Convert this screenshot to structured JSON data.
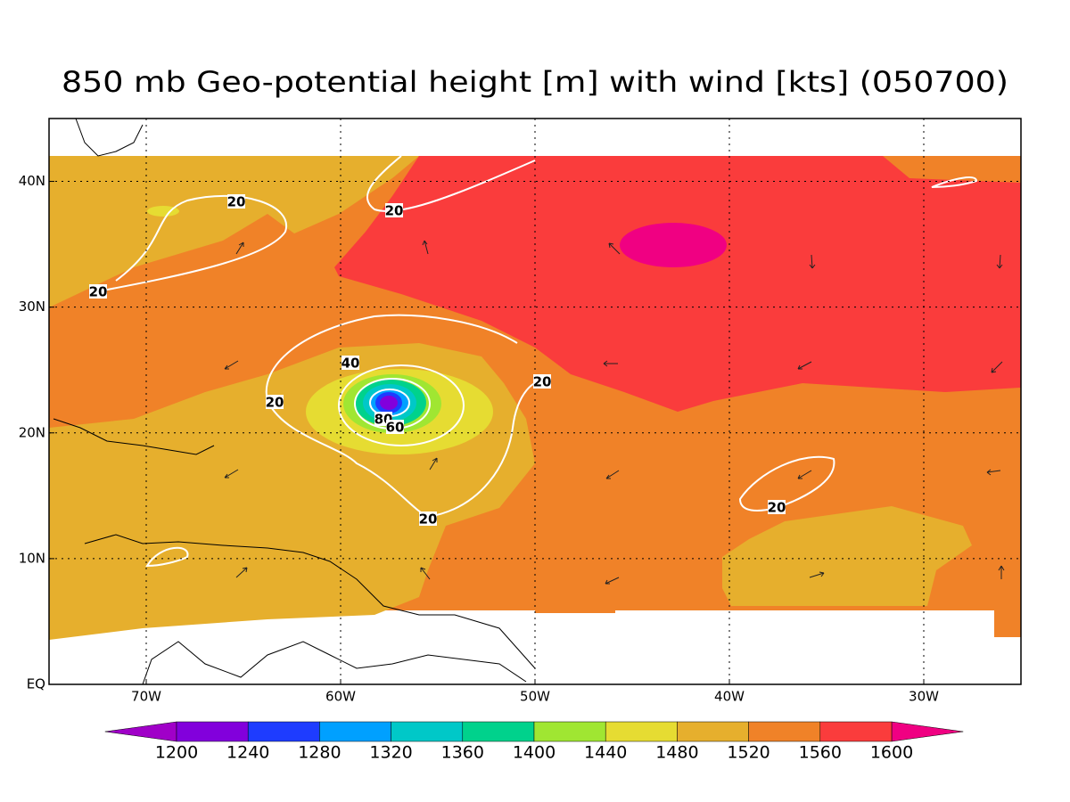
{
  "map": {
    "title": "850 mb Geo-potential height [m] with wind [kts] (050700)",
    "xlim": [
      -75,
      -25
    ],
    "ylim": [
      0,
      45
    ],
    "lon_ticks": [
      {
        "value": -70,
        "label": "70W"
      },
      {
        "value": -60,
        "label": "60W"
      },
      {
        "value": -50,
        "label": "50W"
      },
      {
        "value": -40,
        "label": "40W"
      },
      {
        "value": -30,
        "label": "30W"
      }
    ],
    "lat_ticks": [
      {
        "value": 0,
        "label": "EQ"
      },
      {
        "value": 10,
        "label": "10N"
      },
      {
        "value": 20,
        "label": "20N"
      },
      {
        "value": 30,
        "label": "30N"
      },
      {
        "value": 40,
        "label": "40N"
      }
    ],
    "grid": true,
    "contour_labels": [
      20,
      20,
      20,
      20,
      20,
      20,
      20,
      40,
      80,
      60
    ],
    "colorbar": {
      "levels": [
        1200,
        1240,
        1280,
        1320,
        1360,
        1400,
        1440,
        1480,
        1520,
        1560,
        1600
      ],
      "colors": [
        "#a000c8",
        "#8200dc",
        "#1e3cff",
        "#00a0ff",
        "#00c8c8",
        "#00d28c",
        "#a0e632",
        "#e6dc32",
        "#e6af2d",
        "#f08228",
        "#fa3c3c",
        "#f00082"
      ]
    }
  }
}
